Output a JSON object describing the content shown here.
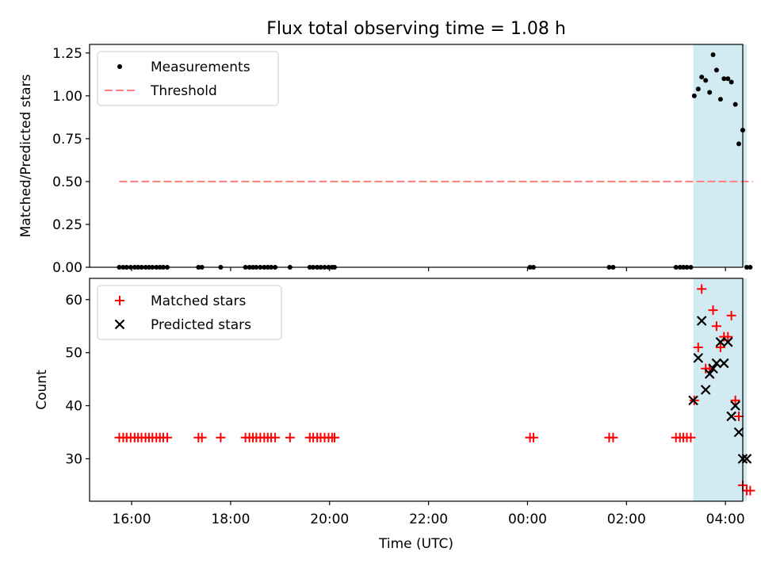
{
  "chart_data": {
    "title": "Flux total observing time = 1.08 h",
    "x_axis": {
      "label": "Time (UTC)",
      "tick_labels": [
        "16:00",
        "18:00",
        "20:00",
        "22:00",
        "00:00",
        "02:00",
        "04:00"
      ],
      "unit": "hours since 16:00 UTC",
      "ticks": [
        0,
        2,
        4,
        6,
        8,
        10,
        12
      ],
      "range": [
        -0.85,
        12.35
      ]
    },
    "shaded_region": {
      "from": 11.35,
      "to": 12.43,
      "color": "#add8e6"
    },
    "panels": [
      {
        "type": "scatter",
        "ylabel": "Matched/Predicted stars",
        "ylim": [
          0,
          1.3
        ],
        "y_ticks": [
          0.0,
          0.25,
          0.5,
          0.75,
          1.0,
          1.25
        ],
        "y_tick_labels": [
          "0.00",
          "0.25",
          "0.50",
          "0.75",
          "1.00",
          "1.25"
        ],
        "legend_position": "upper-left",
        "series": [
          {
            "name": "Measurements",
            "kind": "scatter",
            "marker": "dot",
            "color": "#000000",
            "x": [
              -0.25,
              -0.17,
              -0.1,
              -0.02,
              0.06,
              0.13,
              0.2,
              0.28,
              0.35,
              0.42,
              0.5,
              0.57,
              0.64,
              0.72,
              1.35,
              1.42,
              1.8,
              2.3,
              2.38,
              2.45,
              2.52,
              2.6,
              2.68,
              2.75,
              2.82,
              2.9,
              3.2,
              3.6,
              3.67,
              3.75,
              3.82,
              3.9,
              3.98,
              4.05,
              4.1,
              8.05,
              8.12,
              9.65,
              9.73,
              11.0,
              11.08,
              11.15,
              11.22,
              11.3,
              11.37,
              11.45,
              11.52,
              11.6,
              11.68,
              11.75,
              11.82,
              11.9,
              11.97,
              12.05,
              12.12,
              12.2,
              12.27,
              12.35,
              12.43,
              12.5
            ],
            "y": [
              0,
              0,
              0,
              0,
              0,
              0,
              0,
              0,
              0,
              0,
              0,
              0,
              0,
              0,
              0,
              0,
              0,
              0,
              0,
              0,
              0,
              0,
              0,
              0,
              0,
              0,
              0,
              0,
              0,
              0,
              0,
              0,
              0,
              0,
              0,
              0,
              0,
              0,
              0,
              0,
              0,
              0,
              0,
              0,
              1.0,
              1.04,
              1.11,
              1.09,
              1.02,
              1.24,
              1.15,
              0.98,
              1.1,
              1.1,
              1.08,
              0.95,
              0.72,
              0.8,
              0,
              0
            ]
          },
          {
            "name": "Threshold",
            "kind": "line",
            "style": "dashed",
            "color": "#ff7f7f",
            "x": [
              -0.25,
              12.55
            ],
            "y": [
              0.5,
              0.5
            ]
          }
        ]
      },
      {
        "type": "scatter",
        "ylabel": "Count",
        "ylim": [
          22,
          64
        ],
        "y_ticks": [
          30,
          40,
          50,
          60
        ],
        "y_tick_labels": [
          "30",
          "40",
          "50",
          "60"
        ],
        "legend_position": "upper-left",
        "series": [
          {
            "name": "Matched stars",
            "marker": "plus",
            "color": "#ff0000",
            "x": [
              -0.25,
              -0.17,
              -0.1,
              -0.02,
              0.06,
              0.13,
              0.2,
              0.28,
              0.35,
              0.42,
              0.5,
              0.57,
              0.64,
              0.72,
              1.35,
              1.42,
              1.8,
              2.3,
              2.38,
              2.45,
              2.52,
              2.6,
              2.68,
              2.75,
              2.82,
              2.9,
              3.2,
              3.6,
              3.67,
              3.75,
              3.82,
              3.9,
              3.98,
              4.05,
              4.1,
              8.05,
              8.12,
              9.65,
              9.73,
              11.0,
              11.08,
              11.15,
              11.22,
              11.3,
              11.37,
              11.45,
              11.52,
              11.6,
              11.68,
              11.75,
              11.82,
              11.9,
              11.97,
              12.05,
              12.12,
              12.2,
              12.27,
              12.35,
              12.43,
              12.5
            ],
            "y": [
              34,
              34,
              34,
              34,
              34,
              34,
              34,
              34,
              34,
              34,
              34,
              34,
              34,
              34,
              34,
              34,
              34,
              34,
              34,
              34,
              34,
              34,
              34,
              34,
              34,
              34,
              34,
              34,
              34,
              34,
              34,
              34,
              34,
              34,
              34,
              34,
              34,
              34,
              34,
              34,
              34,
              34,
              34,
              34,
              41,
              51,
              62,
              47,
              47,
              58,
              55,
              51,
              53,
              53,
              57,
              41,
              38,
              25,
              24,
              24
            ]
          },
          {
            "name": "Predicted stars",
            "marker": "x",
            "color": "#000000",
            "x": [
              11.35,
              11.45,
              11.52,
              11.6,
              11.68,
              11.75,
              11.82,
              11.9,
              11.97,
              12.05,
              12.12,
              12.2,
              12.27,
              12.35,
              12.43
            ],
            "y": [
              41,
              49,
              56,
              43,
              46,
              47,
              48,
              52,
              48,
              52,
              38,
              40,
              35,
              30,
              30
            ]
          }
        ]
      }
    ]
  }
}
